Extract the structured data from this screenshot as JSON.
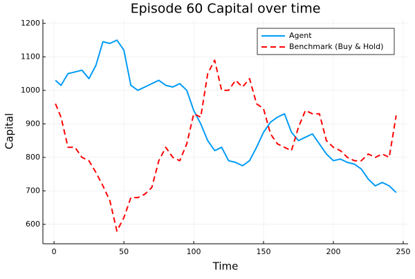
{
  "chart_data": {
    "type": "line",
    "title": "Episode 60 Capital over time",
    "x_label": "Time",
    "y_label": "Capital",
    "x": [
      1,
      5,
      10,
      15,
      20,
      25,
      30,
      35,
      40,
      45,
      50,
      55,
      60,
      65,
      70,
      75,
      80,
      85,
      90,
      95,
      100,
      105,
      110,
      115,
      120,
      125,
      130,
      135,
      140,
      145,
      150,
      155,
      160,
      165,
      170,
      175,
      180,
      185,
      190,
      195,
      200,
      205,
      210,
      215,
      220,
      225,
      230,
      235,
      240,
      245
    ],
    "series": [
      {
        "name": "Agent",
        "color": "#009af9",
        "dash": false,
        "values": [
          1030,
          1015,
          1050,
          1055,
          1060,
          1035,
          1075,
          1145,
          1140,
          1150,
          1120,
          1015,
          1000,
          1010,
          1020,
          1030,
          1015,
          1010,
          1020,
          1000,
          940,
          900,
          850,
          820,
          830,
          790,
          785,
          775,
          790,
          830,
          875,
          905,
          920,
          930,
          875,
          850,
          860,
          870,
          840,
          810,
          790,
          795,
          785,
          780,
          765,
          735,
          715,
          725,
          715,
          695
        ]
      },
      {
        "name": "Benchmark (Buy & Hold)",
        "color": "#ff0000",
        "dash": true,
        "values": [
          960,
          920,
          830,
          830,
          800,
          790,
          755,
          715,
          670,
          580,
          620,
          680,
          680,
          690,
          710,
          790,
          830,
          800,
          790,
          840,
          930,
          920,
          1050,
          1090,
          1000,
          1000,
          1030,
          1010,
          1035,
          960,
          945,
          870,
          840,
          830,
          820,
          890,
          940,
          930,
          930,
          850,
          830,
          820,
          800,
          790,
          790,
          810,
          800,
          810,
          800,
          925
        ]
      }
    ],
    "xlim": [
      -8,
      253.5
    ],
    "ylim": [
      542,
      1212
    ],
    "xticks": [
      0,
      50,
      100,
      150,
      200,
      250
    ],
    "yticks": [
      600,
      700,
      800,
      900,
      1000,
      1100,
      1200
    ],
    "grid": true,
    "legend": "top-right"
  }
}
